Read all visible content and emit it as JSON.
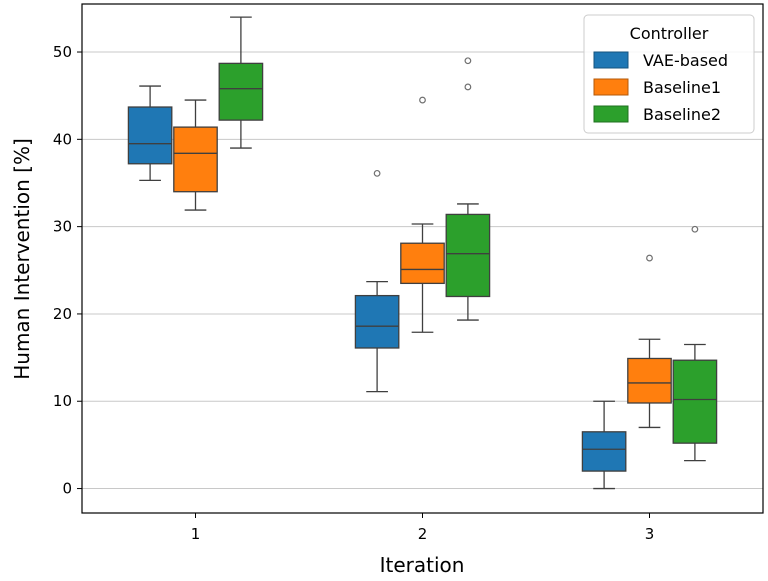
{
  "chart_data": {
    "type": "box",
    "title": "",
    "xlabel": "Iteration",
    "ylabel": "Human Intervention [%]",
    "categories": [
      "1",
      "2",
      "3"
    ],
    "ylim": [
      -2.8,
      55.5
    ],
    "yticks": [
      0,
      10,
      20,
      30,
      40,
      50
    ],
    "grid": "horizontal",
    "legend": {
      "title": "Controller",
      "position": "top-right"
    },
    "series": [
      {
        "name": "VAE-based",
        "color": "#1f77b4",
        "boxes": [
          {
            "whislo": 35.3,
            "q1": 37.2,
            "med": 39.5,
            "q3": 43.7,
            "whishi": 46.1,
            "fliers": []
          },
          {
            "whislo": 11.1,
            "q1": 16.1,
            "med": 18.6,
            "q3": 22.1,
            "whishi": 23.7,
            "fliers": [
              36.1
            ]
          },
          {
            "whislo": 0.0,
            "q1": 2.0,
            "med": 4.5,
            "q3": 6.5,
            "whishi": 10.0,
            "fliers": []
          }
        ]
      },
      {
        "name": "Baseline1",
        "color": "#ff7f0e",
        "boxes": [
          {
            "whislo": 31.9,
            "q1": 34.0,
            "med": 38.4,
            "q3": 41.4,
            "whishi": 44.5,
            "fliers": []
          },
          {
            "whislo": 17.9,
            "q1": 23.5,
            "med": 25.1,
            "q3": 28.1,
            "whishi": 30.3,
            "fliers": [
              44.5
            ]
          },
          {
            "whislo": 7.0,
            "q1": 9.8,
            "med": 12.1,
            "q3": 14.9,
            "whishi": 17.1,
            "fliers": [
              26.4
            ]
          }
        ]
      },
      {
        "name": "Baseline2",
        "color": "#2ca02c",
        "boxes": [
          {
            "whislo": 39.0,
            "q1": 42.2,
            "med": 45.8,
            "q3": 48.7,
            "whishi": 54.0,
            "fliers": []
          },
          {
            "whislo": 19.3,
            "q1": 22.0,
            "med": 26.9,
            "q3": 31.4,
            "whishi": 32.6,
            "fliers": [
              46.0,
              49.0
            ]
          },
          {
            "whislo": 3.2,
            "q1": 5.2,
            "med": 10.2,
            "q3": 14.7,
            "whishi": 16.5,
            "fliers": [
              29.7
            ]
          }
        ]
      }
    ]
  }
}
